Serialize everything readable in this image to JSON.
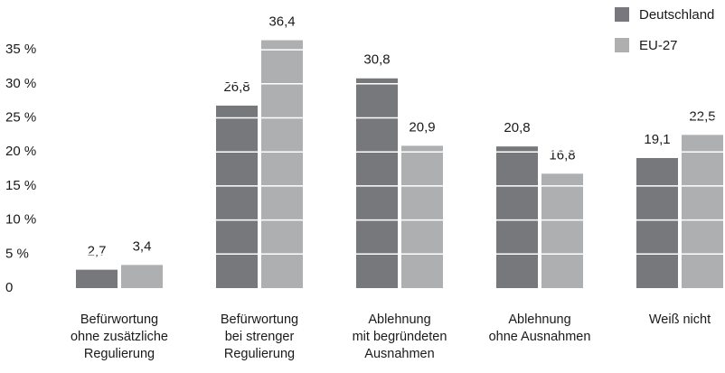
{
  "chart_data": {
    "type": "bar",
    "categories": [
      "Befürwortung\nohne zusätzliche\nRegulierung",
      "Befürwortung\nbei strenger\nRegulierung",
      "Ablehnung\nmit begründeten\nAusnahmen",
      "Ablehnung\nohne Ausnahmen",
      "Weiß nicht"
    ],
    "series": [
      {
        "name": "Deutschland",
        "color": "#77787b",
        "values": [
          2.7,
          26.8,
          30.8,
          20.8,
          19.1
        ],
        "value_labels": [
          "2,7",
          "26,8",
          "30,8",
          "20,8",
          "19,1"
        ]
      },
      {
        "name": "EU-27",
        "color": "#aeafb1",
        "values": [
          3.4,
          36.4,
          20.9,
          16.8,
          22.5
        ],
        "value_labels": [
          "3,4",
          "36,4",
          "20,9",
          "16,8",
          "22,5"
        ]
      }
    ],
    "ylim": [
      0,
      40
    ],
    "yticks": [
      0,
      {
        "value": 5,
        "label": "5 %"
      },
      {
        "value": 10,
        "label": "10 %"
      },
      {
        "value": 15,
        "label": "15 %"
      },
      {
        "value": 20,
        "label": "20 %"
      },
      {
        "value": 25,
        "label": "25 %"
      },
      {
        "value": 30,
        "label": "30 %"
      },
      {
        "value": 35,
        "label": "35 %"
      }
    ],
    "grid": true,
    "legend": "top-right"
  }
}
